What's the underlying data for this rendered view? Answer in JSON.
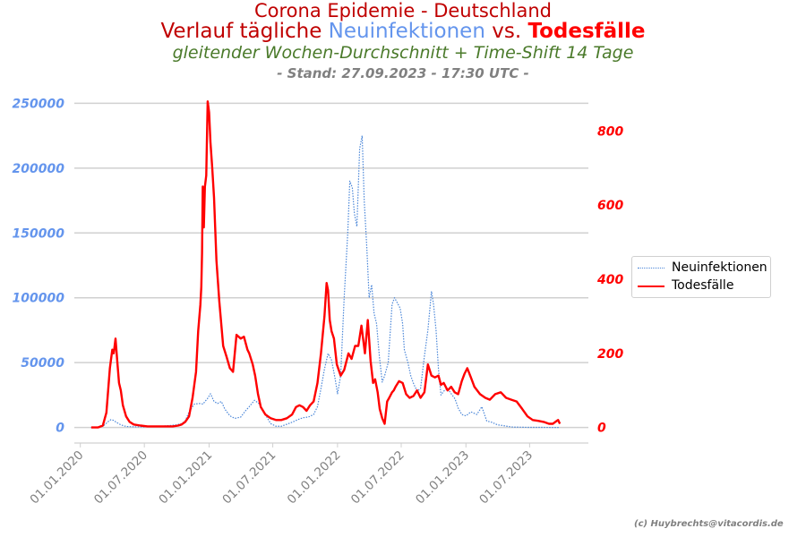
{
  "header": {
    "title_line1": "Corona Epidemie - Deutschland",
    "title_line2_part1": "Verlauf tägliche ",
    "title_line2_part2": "Neuinfektionen",
    "title_line2_part3": " vs. ",
    "title_line2_part4": "Todesfälle",
    "subtitle": "gleitender Wochen-Durchschnitt + Time-Shift 14 Tage",
    "stand": "- Stand: 27.09.2023 - 17:30 UTC -"
  },
  "credit": "(c) Huybrechts@vitacordis.de",
  "colors": {
    "infections": "#4a86d8",
    "deaths": "#ff0000",
    "left_axis_labels": "#6495ed",
    "right_axis_labels": "#ff0000",
    "grid": "#d0d0d0",
    "xtick_labels": "#808080"
  },
  "chart_data": {
    "type": "line",
    "title": "Corona Epidemie - Deutschland",
    "x_ticks": [
      "01.01.2020",
      "01.07.2020",
      "01.01.2021",
      "01.07.2021",
      "01.01.2022",
      "01.07.2022",
      "01.01.2023",
      "01.07.2023"
    ],
    "y_left_ticks": [
      "0",
      "50000",
      "100000",
      "150000",
      "200000",
      "250000"
    ],
    "y_right_ticks": [
      "0",
      "200",
      "400",
      "600",
      "800"
    ],
    "ylim_left": [
      -12000,
      262000
    ],
    "ylim_right": [
      -42,
      917
    ],
    "xlim": [
      "2019-12-15",
      "2023-12-15"
    ],
    "grid": "horizontal (left axis)",
    "legend_placement": "right",
    "series": [
      {
        "name": "Neuinfektionen",
        "axis": "left",
        "style": "dotted",
        "x": [
          "2020-01-31",
          "2020-02-28",
          "2020-03-10",
          "2020-03-20",
          "2020-03-28",
          "2020-04-04",
          "2020-04-12",
          "2020-04-25",
          "2020-05-10",
          "2020-06-01",
          "2020-07-01",
          "2020-08-01",
          "2020-08-20",
          "2020-09-15",
          "2020-10-01",
          "2020-10-15",
          "2020-10-25",
          "2020-11-05",
          "2020-11-20",
          "2020-12-05",
          "2020-12-15",
          "2020-12-20",
          "2020-12-27",
          "2021-01-05",
          "2021-01-15",
          "2021-01-25",
          "2021-02-05",
          "2021-02-15",
          "2021-03-01",
          "2021-03-15",
          "2021-04-01",
          "2021-04-15",
          "2021-04-25",
          "2021-05-10",
          "2021-05-25",
          "2021-06-10",
          "2021-06-25",
          "2021-07-10",
          "2021-07-25",
          "2021-08-10",
          "2021-08-25",
          "2021-09-10",
          "2021-09-25",
          "2021-10-10",
          "2021-10-25",
          "2021-11-05",
          "2021-11-15",
          "2021-11-25",
          "2021-12-05",
          "2021-12-15",
          "2021-12-25",
          "2022-01-01",
          "2022-01-10",
          "2022-01-20",
          "2022-01-30",
          "2022-02-05",
          "2022-02-12",
          "2022-02-18",
          "2022-02-25",
          "2022-03-05",
          "2022-03-12",
          "2022-03-18",
          "2022-03-25",
          "2022-04-01",
          "2022-04-08",
          "2022-04-15",
          "2022-04-22",
          "2022-04-30",
          "2022-05-08",
          "2022-05-15",
          "2022-05-25",
          "2022-06-05",
          "2022-06-12",
          "2022-06-20",
          "2022-06-28",
          "2022-07-05",
          "2022-07-10",
          "2022-07-20",
          "2022-07-28",
          "2022-08-05",
          "2022-08-15",
          "2022-08-25",
          "2022-09-05",
          "2022-09-15",
          "2022-09-25",
          "2022-10-01",
          "2022-10-08",
          "2022-10-15",
          "2022-10-22",
          "2022-10-30",
          "2022-11-10",
          "2022-11-20",
          "2022-12-01",
          "2022-12-10",
          "2022-12-20",
          "2023-01-01",
          "2023-01-15",
          "2023-02-01",
          "2023-02-15",
          "2023-03-01",
          "2023-03-15",
          "2023-04-01",
          "2023-04-15",
          "2023-05-01",
          "2023-05-15",
          "2023-06-01",
          "2023-07-01",
          "2023-08-01",
          "2023-09-01",
          "2023-09-25"
        ],
        "y": [
          0,
          100,
          2000,
          4500,
          6000,
          5500,
          4000,
          2000,
          800,
          500,
          400,
          600,
          1000,
          1600,
          2000,
          3000,
          5000,
          12000,
          18000,
          18500,
          18000,
          20000,
          22000,
          26000,
          20000,
          18500,
          20000,
          14000,
          9000,
          7000,
          8000,
          13000,
          16000,
          21000,
          18000,
          10000,
          3000,
          1000,
          900,
          2500,
          4000,
          6000,
          7500,
          8000,
          10000,
          16000,
          30000,
          45000,
          57000,
          52000,
          38000,
          26000,
          40000,
          100000,
          150000,
          190000,
          185000,
          165000,
          155000,
          215000,
          225000,
          175000,
          140000,
          100000,
          110000,
          88000,
          80000,
          55000,
          35000,
          40000,
          50000,
          95000,
          100000,
          96000,
          92000,
          80000,
          60000,
          50000,
          40000,
          34000,
          28000,
          30000,
          55000,
          75000,
          105000,
          95000,
          75000,
          45000,
          25000,
          28000,
          30000,
          26000,
          22000,
          15000,
          10000,
          9000,
          12000,
          10000,
          16000,
          5000,
          4000,
          2000,
          1500,
          800,
          300,
          200,
          100,
          50,
          20,
          0
        ]
      },
      {
        "name": "Todesfälle",
        "axis": "right",
        "style": "solid",
        "x": [
          "2020-02-01",
          "2020-02-20",
          "2020-03-05",
          "2020-03-15",
          "2020-03-25",
          "2020-04-01",
          "2020-04-05",
          "2020-04-10",
          "2020-04-15",
          "2020-04-20",
          "2020-04-25",
          "2020-05-01",
          "2020-05-10",
          "2020-05-20",
          "2020-06-01",
          "2020-06-20",
          "2020-07-10",
          "2020-08-01",
          "2020-09-01",
          "2020-09-20",
          "2020-10-05",
          "2020-10-15",
          "2020-10-25",
          "2020-11-05",
          "2020-11-15",
          "2020-11-25",
          "2020-12-01",
          "2020-12-07",
          "2020-12-10",
          "2020-12-12",
          "2020-12-14",
          "2020-12-17",
          "2020-12-20",
          "2020-12-24",
          "2020-12-28",
          "2021-01-01",
          "2021-01-05",
          "2021-01-10",
          "2021-01-15",
          "2021-01-22",
          "2021-01-30",
          "2021-02-10",
          "2021-02-20",
          "2021-03-01",
          "2021-03-10",
          "2021-03-20",
          "2021-04-01",
          "2021-04-10",
          "2021-04-20",
          "2021-04-25",
          "2021-05-05",
          "2021-05-12",
          "2021-05-20",
          "2021-05-28",
          "2021-06-10",
          "2021-06-25",
          "2021-07-10",
          "2021-07-25",
          "2021-08-10",
          "2021-08-25",
          "2021-09-05",
          "2021-09-15",
          "2021-09-25",
          "2021-10-05",
          "2021-10-15",
          "2021-10-25",
          "2021-11-05",
          "2021-11-15",
          "2021-11-25",
          "2021-12-01",
          "2021-12-05",
          "2021-12-10",
          "2021-12-15",
          "2021-12-22",
          "2021-12-30",
          "2022-01-10",
          "2022-01-20",
          "2022-02-01",
          "2022-02-10",
          "2022-02-20",
          "2022-03-01",
          "2022-03-10",
          "2022-03-20",
          "2022-03-28",
          "2022-04-05",
          "2022-04-12",
          "2022-04-18",
          "2022-04-25",
          "2022-05-01",
          "2022-05-08",
          "2022-05-15",
          "2022-05-22",
          "2022-05-28",
          "2022-06-05",
          "2022-06-10",
          "2022-06-15",
          "2022-06-25",
          "2022-07-05",
          "2022-07-15",
          "2022-07-25",
          "2022-08-05",
          "2022-08-15",
          "2022-08-25",
          "2022-09-05",
          "2022-09-15",
          "2022-09-25",
          "2022-10-05",
          "2022-10-15",
          "2022-10-22",
          "2022-10-30",
          "2022-11-10",
          "2022-11-20",
          "2022-11-30",
          "2022-12-10",
          "2022-12-20",
          "2022-12-28",
          "2023-01-05",
          "2023-01-15",
          "2023-01-25",
          "2023-02-10",
          "2023-02-25",
          "2023-03-10",
          "2023-03-25",
          "2023-04-10",
          "2023-04-25",
          "2023-05-10",
          "2023-05-25",
          "2023-06-10",
          "2023-06-25",
          "2023-07-10",
          "2023-07-25",
          "2023-08-10",
          "2023-08-25",
          "2023-09-05",
          "2023-09-12",
          "2023-09-20",
          "2023-09-25"
        ],
        "y": [
          0,
          0,
          5,
          40,
          160,
          210,
          200,
          240,
          180,
          120,
          100,
          60,
          30,
          15,
          8,
          5,
          3,
          3,
          3,
          3,
          5,
          8,
          15,
          30,
          80,
          150,
          260,
          330,
          380,
          470,
          650,
          540,
          650,
          680,
          880,
          850,
          770,
          700,
          620,
          450,
          340,
          220,
          190,
          160,
          150,
          250,
          240,
          245,
          210,
          200,
          170,
          140,
          90,
          55,
          35,
          25,
          20,
          20,
          25,
          35,
          55,
          60,
          55,
          45,
          60,
          70,
          120,
          200,
          300,
          390,
          370,
          290,
          260,
          240,
          170,
          140,
          155,
          200,
          185,
          220,
          220,
          275,
          200,
          290,
          180,
          120,
          130,
          95,
          50,
          25,
          10,
          70,
          80,
          95,
          100,
          110,
          125,
          120,
          90,
          80,
          85,
          100,
          80,
          95,
          170,
          140,
          135,
          140,
          115,
          120,
          100,
          110,
          95,
          90,
          125,
          145,
          160,
          135,
          110,
          90,
          80,
          75,
          90,
          95,
          80,
          75,
          70,
          50,
          30,
          20,
          18,
          15,
          10,
          10,
          15,
          20,
          10
        ]
      }
    ]
  }
}
